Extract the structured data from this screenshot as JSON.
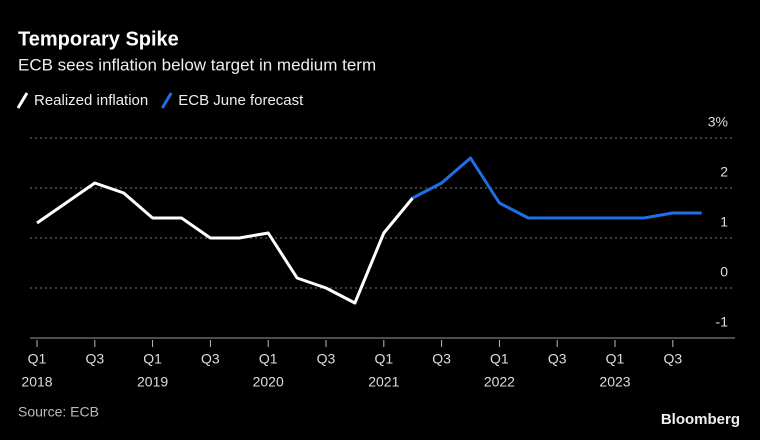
{
  "chart_data": {
    "type": "line",
    "title": "Temporary Spike",
    "subtitle": "ECB sees inflation below target in medium term",
    "source": "Source: ECB",
    "brand": "Bloomberg",
    "categories": [
      "Q1",
      null,
      "Q3",
      null,
      "Q1",
      null,
      "Q3",
      null,
      "Q1",
      null,
      "Q3",
      null,
      "Q1",
      null,
      "Q3",
      null,
      "Q1",
      null,
      "Q3",
      null,
      "Q1",
      null,
      "Q3",
      null
    ],
    "years": [
      "2018",
      "2019",
      "2020",
      "2021",
      "2022",
      "2023"
    ],
    "series": [
      {
        "name": "Realized inflation",
        "color": "#ffffff",
        "values": [
          1.3,
          1.7,
          2.1,
          1.9,
          1.4,
          1.4,
          1.0,
          1.0,
          1.1,
          0.2,
          0.0,
          -0.3,
          1.1,
          1.8,
          null,
          null,
          null,
          null,
          null,
          null,
          null,
          null,
          null,
          null
        ]
      },
      {
        "name": "ECB June forecast",
        "color": "#1f6fe5",
        "values": [
          null,
          null,
          null,
          null,
          null,
          null,
          null,
          null,
          null,
          null,
          null,
          null,
          null,
          1.8,
          2.1,
          2.6,
          1.7,
          1.4,
          1.4,
          1.4,
          1.4,
          1.4,
          1.5,
          1.5
        ]
      }
    ],
    "ylim": [
      -1,
      3.2
    ],
    "yticks": [
      {
        "value": 3,
        "label": "3%"
      },
      2,
      1,
      0,
      -1
    ],
    "grid": true
  }
}
